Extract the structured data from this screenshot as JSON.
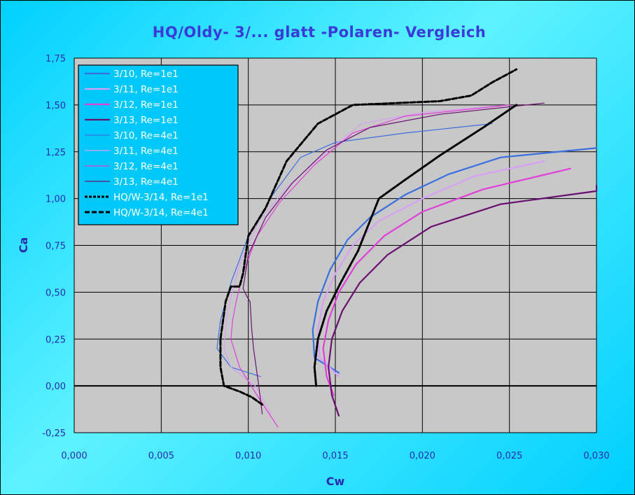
{
  "chart_data": {
    "type": "line",
    "title": "HQ/Oldy- 3/... glatt -Polaren- Vergleich",
    "xlabel": "Cw",
    "ylabel": "Ca",
    "xlim": [
      0,
      0.03
    ],
    "ylim": [
      -0.25,
      1.75
    ],
    "x_ticks": [
      "0,000",
      "0,005",
      "0,010",
      "0,015",
      "0,020",
      "0,025",
      "0,030"
    ],
    "y_ticks": [
      "-0,25",
      "0,00",
      "0,25",
      "0,50",
      "0,75",
      "1,00",
      "1,25",
      "1,50",
      "1,75"
    ],
    "grid": true,
    "legend_position": "top-left",
    "plot_background": "#c8c8c8",
    "series": [
      {
        "name": "3/10, Re=1e1",
        "color": "#3a6fe0",
        "width": 2.2,
        "dash": "",
        "points": [
          [
            0.0152,
            0.07
          ],
          [
            0.0138,
            0.15
          ],
          [
            0.0137,
            0.3
          ],
          [
            0.014,
            0.45
          ],
          [
            0.0147,
            0.62
          ],
          [
            0.0157,
            0.78
          ],
          [
            0.017,
            0.9
          ],
          [
            0.019,
            1.02
          ],
          [
            0.0215,
            1.13
          ],
          [
            0.0245,
            1.22
          ],
          [
            0.03,
            1.27
          ]
        ]
      },
      {
        "name": "3/11, Re=1e1",
        "color": "#d8a0f4",
        "width": 2.2,
        "dash": "",
        "points": [
          [
            0.0152,
            0.05
          ],
          [
            0.0141,
            0.15
          ],
          [
            0.014,
            0.3
          ],
          [
            0.0143,
            0.45
          ],
          [
            0.015,
            0.6
          ],
          [
            0.016,
            0.75
          ],
          [
            0.0175,
            0.88
          ],
          [
            0.02,
            1.0
          ],
          [
            0.023,
            1.12
          ],
          [
            0.027,
            1.2
          ]
        ]
      },
      {
        "name": "3/12, Re=1e1",
        "color": "#e040d8",
        "width": 2.2,
        "dash": "",
        "points": [
          [
            0.0149,
            -0.05
          ],
          [
            0.0145,
            0.05
          ],
          [
            0.0143,
            0.2
          ],
          [
            0.0146,
            0.35
          ],
          [
            0.0152,
            0.5
          ],
          [
            0.0162,
            0.65
          ],
          [
            0.0178,
            0.8
          ],
          [
            0.02,
            0.93
          ],
          [
            0.0235,
            1.05
          ],
          [
            0.0285,
            1.16
          ]
        ]
      },
      {
        "name": "3/13, Re=1e1",
        "color": "#6a1070",
        "width": 2.2,
        "dash": "",
        "points": [
          [
            0.0152,
            -0.16
          ],
          [
            0.0148,
            -0.05
          ],
          [
            0.0146,
            0.1
          ],
          [
            0.0148,
            0.25
          ],
          [
            0.0154,
            0.4
          ],
          [
            0.0164,
            0.55
          ],
          [
            0.018,
            0.7
          ],
          [
            0.0205,
            0.85
          ],
          [
            0.0245,
            0.97
          ],
          [
            0.03,
            1.04
          ],
          [
            0.03,
            1.07
          ]
        ]
      },
      {
        "name": "3/10, Re=4e1",
        "color": "#3a6fe0",
        "width": 1.2,
        "dash": "",
        "points": [
          [
            0.0107,
            0.05
          ],
          [
            0.009,
            0.1
          ],
          [
            0.0082,
            0.2
          ],
          [
            0.0084,
            0.35
          ],
          [
            0.009,
            0.55
          ],
          [
            0.01,
            0.8
          ],
          [
            0.0114,
            1.02
          ],
          [
            0.013,
            1.22
          ],
          [
            0.015,
            1.3
          ],
          [
            0.019,
            1.35
          ],
          [
            0.024,
            1.4
          ]
        ]
      },
      {
        "name": "3/11, Re=4e1",
        "color": "#d8a0f4",
        "width": 1.2,
        "dash": "",
        "points": [
          [
            0.0113,
            -0.15
          ],
          [
            0.0104,
            0.0
          ],
          [
            0.009,
            0.1
          ],
          [
            0.0086,
            0.2
          ],
          [
            0.0088,
            0.4
          ],
          [
            0.0095,
            0.65
          ],
          [
            0.0106,
            0.88
          ],
          [
            0.0122,
            1.06
          ],
          [
            0.0145,
            1.25
          ],
          [
            0.0165,
            1.4
          ],
          [
            0.02,
            1.46
          ],
          [
            0.025,
            1.5
          ]
        ]
      },
      {
        "name": "3/12, Re=4e1",
        "color": "#e040d8",
        "width": 1.2,
        "dash": "",
        "points": [
          [
            0.0117,
            -0.22
          ],
          [
            0.0105,
            -0.05
          ],
          [
            0.0095,
            0.1
          ],
          [
            0.009,
            0.25
          ],
          [
            0.0091,
            0.35
          ],
          [
            0.0093,
            0.45
          ],
          [
            0.0097,
            0.6
          ],
          [
            0.0105,
            0.8
          ],
          [
            0.0118,
            0.98
          ],
          [
            0.0138,
            1.18
          ],
          [
            0.016,
            1.35
          ],
          [
            0.019,
            1.44
          ],
          [
            0.025,
            1.5
          ]
        ]
      },
      {
        "name": "3/13, Re=4e1",
        "color": "#6a1070",
        "width": 1.2,
        "dash": "",
        "points": [
          [
            0.0108,
            -0.15
          ],
          [
            0.0106,
            0.0
          ],
          [
            0.0103,
            0.2
          ],
          [
            0.0102,
            0.3
          ],
          [
            0.0101,
            0.45
          ],
          [
            0.0099,
            0.48
          ],
          [
            0.0097,
            0.52
          ],
          [
            0.01,
            0.7
          ],
          [
            0.011,
            0.9
          ],
          [
            0.0125,
            1.08
          ],
          [
            0.0145,
            1.26
          ],
          [
            0.017,
            1.38
          ],
          [
            0.021,
            1.45
          ],
          [
            0.027,
            1.51
          ]
        ]
      },
      {
        "name": "HQ/W-3/14, Re=1e1",
        "color": "#000000",
        "width": 3,
        "dash": "4,2",
        "points": [
          [
            0.0139,
            0.0
          ],
          [
            0.0138,
            0.1
          ],
          [
            0.014,
            0.25
          ],
          [
            0.0145,
            0.4
          ],
          [
            0.0153,
            0.55
          ],
          [
            0.0163,
            0.72
          ],
          [
            0.0175,
            1.0
          ],
          [
            0.019,
            1.1
          ],
          [
            0.021,
            1.23
          ],
          [
            0.0235,
            1.38
          ],
          [
            0.0254,
            1.5
          ]
        ]
      },
      {
        "name": "HQ/W-3/14, Re=4e1",
        "color": "#000000",
        "width": 3,
        "dash": "7,3",
        "points": [
          [
            0.0108,
            -0.1
          ],
          [
            0.0102,
            -0.06
          ],
          [
            0.0095,
            -0.03
          ],
          [
            0.0086,
            0.0
          ],
          [
            0.0084,
            0.1
          ],
          [
            0.0084,
            0.25
          ],
          [
            0.0087,
            0.45
          ],
          [
            0.009,
            0.53
          ],
          [
            0.0095,
            0.53
          ],
          [
            0.0097,
            0.6
          ],
          [
            0.01,
            0.8
          ],
          [
            0.011,
            0.95
          ],
          [
            0.0122,
            1.2
          ],
          [
            0.014,
            1.4
          ],
          [
            0.016,
            1.5
          ],
          [
            0.021,
            1.52
          ],
          [
            0.0228,
            1.55
          ],
          [
            0.024,
            1.62
          ],
          [
            0.0254,
            1.69
          ]
        ]
      }
    ]
  }
}
